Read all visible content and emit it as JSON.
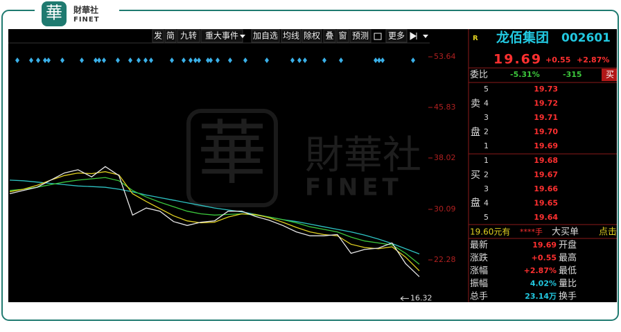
{
  "logo": {
    "mark": "華",
    "cn": "財華社",
    "en": "FINET"
  },
  "toolbar": [
    "发",
    "简",
    "九转",
    "重大事件",
    "加自选",
    "均线",
    "除权",
    "叠",
    "窗",
    "预测",
    "更多"
  ],
  "watermark": {
    "mark": "華",
    "cn": "財華社",
    "en": "FINET"
  },
  "chart_data": {
    "type": "line",
    "ylim": [
      15.75,
      55.78
    ],
    "yticks": [
      53.64,
      45.83,
      38.02,
      30.09,
      22.28
    ],
    "low_marker": 16.32,
    "series": [
      {
        "color": "#2ec4c4",
        "values": [
          34.6,
          34.5,
          34.3,
          34.1,
          33.9,
          33.7,
          33.6,
          33.5,
          33.2,
          32.8,
          32.3,
          31.9,
          31.5,
          31.1,
          30.7,
          30.3,
          30.0,
          29.7,
          29.3,
          28.9,
          28.5,
          28.2,
          27.8,
          27.4,
          27.0,
          26.6,
          26.1,
          25.5,
          24.8,
          24.0,
          23.2
        ]
      },
      {
        "color": "#3cc83c",
        "values": [
          33.0,
          33.2,
          33.5,
          33.9,
          34.3,
          34.6,
          34.8,
          35.0,
          34.5,
          33.0,
          32.0,
          31.2,
          30.5,
          29.8,
          29.4,
          29.2,
          29.3,
          29.4,
          29.2,
          28.9,
          28.5,
          28.0,
          27.4,
          27.0,
          26.6,
          25.8,
          25.2,
          24.9,
          24.6,
          23.3,
          21.6
        ]
      },
      {
        "color": "#e0d020",
        "values": [
          32.8,
          33.2,
          33.8,
          34.6,
          35.3,
          35.7,
          35.6,
          35.9,
          35.4,
          32.5,
          31.3,
          30.2,
          29.1,
          28.3,
          28.0,
          28.1,
          28.9,
          29.4,
          29.3,
          28.8,
          28.1,
          27.3,
          26.6,
          26.2,
          26.0,
          24.7,
          24.2,
          24.0,
          24.3,
          22.7,
          20.6
        ]
      },
      {
        "color": "#e8e8e8",
        "values": [
          32.5,
          33.0,
          33.5,
          34.6,
          35.7,
          36.2,
          35.1,
          36.7,
          35.3,
          29.2,
          30.3,
          29.8,
          28.2,
          27.6,
          28.1,
          28.3,
          29.8,
          29.8,
          29.0,
          28.4,
          27.6,
          26.6,
          26.0,
          26.0,
          26.2,
          23.3,
          23.9,
          24.1,
          24.9,
          21.7,
          19.69
        ]
      }
    ]
  },
  "quote": {
    "flag": "R",
    "name": "龙佰集团",
    "code": "002601",
    "price": "19.69",
    "change": "+0.55",
    "pct": "+2.87%",
    "ratio_label": "委比",
    "ratio": "-5.31%",
    "ratio_diff": "-315",
    "ratio_btn": "买",
    "sell_label": [
      "卖",
      "盘"
    ],
    "sell": [
      [
        "5",
        "19.73"
      ],
      [
        "4",
        "19.72"
      ],
      [
        "3",
        "19.71"
      ],
      [
        "2",
        "19.70"
      ],
      [
        "1",
        "19.69"
      ]
    ],
    "buy_label": [
      "买",
      "盘"
    ],
    "buy": [
      [
        "1",
        "19.68"
      ],
      [
        "2",
        "19.67"
      ],
      [
        "3",
        "19.66"
      ],
      [
        "4",
        "19.65"
      ],
      [
        "5",
        "19.64"
      ]
    ],
    "big_order": [
      "19.60元有",
      "****手",
      "大买单",
      "点击"
    ],
    "stats": [
      [
        "最新",
        "19.69",
        "开盘"
      ],
      [
        "涨跌",
        "+0.55",
        "最高"
      ],
      [
        "涨幅",
        "+2.87%",
        "最低"
      ],
      [
        "振幅",
        "4.02%",
        "量比"
      ],
      [
        "总手",
        "23.14万",
        "换手"
      ]
    ]
  }
}
